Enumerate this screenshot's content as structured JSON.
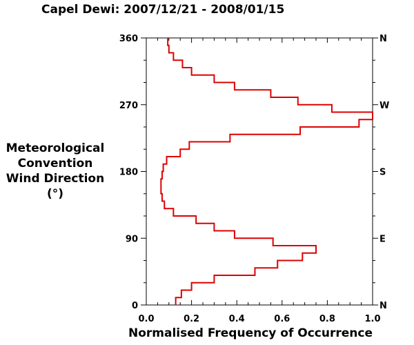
{
  "chart_data": {
    "type": "line",
    "title": "Capel Dewi: 2007/12/21 - 2008/01/15",
    "xlabel": "Normalised Frequency of Occurrence",
    "ylabel_lines": [
      "Meteorological",
      "Convention",
      "Wind Direction",
      "(°)"
    ],
    "xlim": [
      0.0,
      1.0
    ],
    "ylim": [
      0,
      360
    ],
    "x_ticks": [
      "0.0",
      "0.2",
      "0.4",
      "0.6",
      "0.8",
      "1.0"
    ],
    "x_tick_values": [
      0.0,
      0.2,
      0.4,
      0.6,
      0.8,
      1.0
    ],
    "y_ticks": [
      "0",
      "90",
      "180",
      "270",
      "360"
    ],
    "y_tick_values": [
      0,
      90,
      180,
      270,
      360
    ],
    "y2_ticks": [
      "N",
      "E",
      "S",
      "W",
      "N"
    ],
    "bin_width_deg": 10,
    "series": [
      {
        "color": "#dd0000",
        "bin_start_deg": [
          0,
          10,
          20,
          30,
          40,
          50,
          60,
          70,
          80,
          90,
          100,
          110,
          120,
          130,
          140,
          150,
          160,
          170,
          180,
          190,
          200,
          210,
          220,
          230,
          240,
          250,
          260,
          270,
          280,
          290,
          300,
          310,
          320,
          330,
          340,
          350
        ],
        "values": [
          0.13,
          0.155,
          0.2,
          0.3,
          0.48,
          0.58,
          0.69,
          0.75,
          0.56,
          0.39,
          0.3,
          0.22,
          0.12,
          0.08,
          0.07,
          0.065,
          0.065,
          0.07,
          0.075,
          0.09,
          0.15,
          0.19,
          0.37,
          0.68,
          0.94,
          1.0,
          0.82,
          0.67,
          0.55,
          0.39,
          0.3,
          0.2,
          0.16,
          0.12,
          0.1,
          0.095
        ]
      }
    ]
  }
}
